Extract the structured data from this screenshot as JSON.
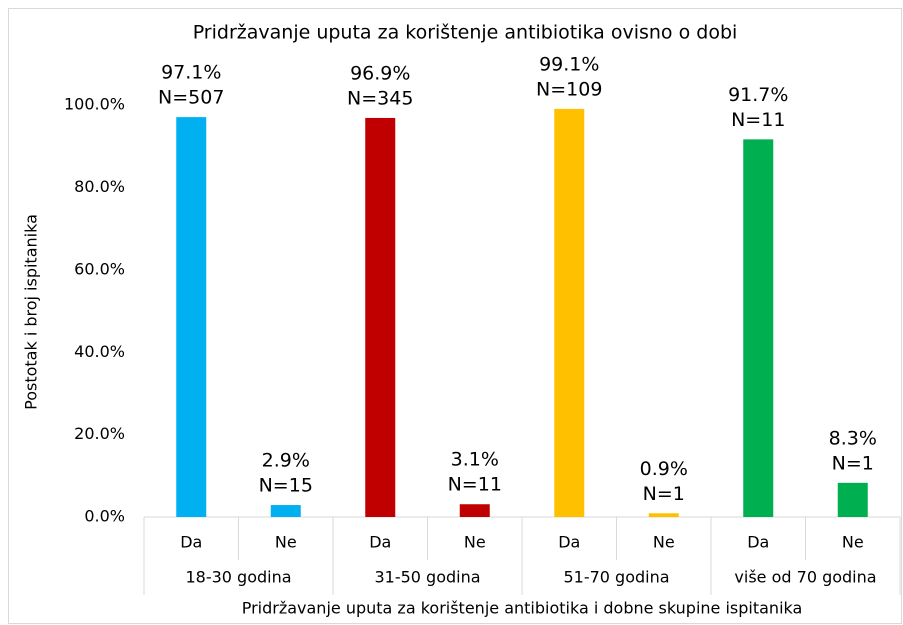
{
  "chart_data": {
    "type": "bar",
    "title": "Pridržavanje uputa za korištenje antibiotika ovisno o dobi",
    "x_label": "Pridržavanje uputa za korištenje antibiotika i dobne skupine ispitanika",
    "y_label": "Postotak i broj ispitanika",
    "ylim": [
      0,
      110
    ],
    "yticks": [
      {
        "value": 0,
        "label": "0.0%"
      },
      {
        "value": 20,
        "label": "20.0%"
      },
      {
        "value": 40,
        "label": "40.0%"
      },
      {
        "value": 60,
        "label": "60.0%"
      },
      {
        "value": 80,
        "label": "80.0%"
      },
      {
        "value": 100,
        "label": "100.0%"
      }
    ],
    "grid": false,
    "groups": [
      {
        "name": "18-30 godina",
        "color": "#00b0f0",
        "categories": [
          "Da",
          "Ne"
        ],
        "values": [
          97.1,
          2.9
        ],
        "value_labels": [
          "97.1%",
          "2.9%"
        ],
        "count_labels": [
          "N=507",
          "N=15"
        ]
      },
      {
        "name": "31-50 godina",
        "color": "#c00000",
        "categories": [
          "Da",
          "Ne"
        ],
        "values": [
          96.9,
          3.1
        ],
        "value_labels": [
          "96.9%",
          "3.1%"
        ],
        "count_labels": [
          "N=345",
          "N=11"
        ]
      },
      {
        "name": "51-70 godina",
        "color": "#ffc000",
        "categories": [
          "Da",
          "Ne"
        ],
        "values": [
          99.1,
          0.9
        ],
        "value_labels": [
          "99.1%",
          "0.9%"
        ],
        "count_labels": [
          "N=109",
          "N=1"
        ]
      },
      {
        "name": "više od 70 godina",
        "color": "#00b050",
        "categories": [
          "Da",
          "Ne"
        ],
        "values": [
          91.7,
          8.3
        ],
        "value_labels": [
          "91.7%",
          "8.3%"
        ],
        "count_labels": [
          "N=11",
          "N=1"
        ]
      }
    ]
  }
}
